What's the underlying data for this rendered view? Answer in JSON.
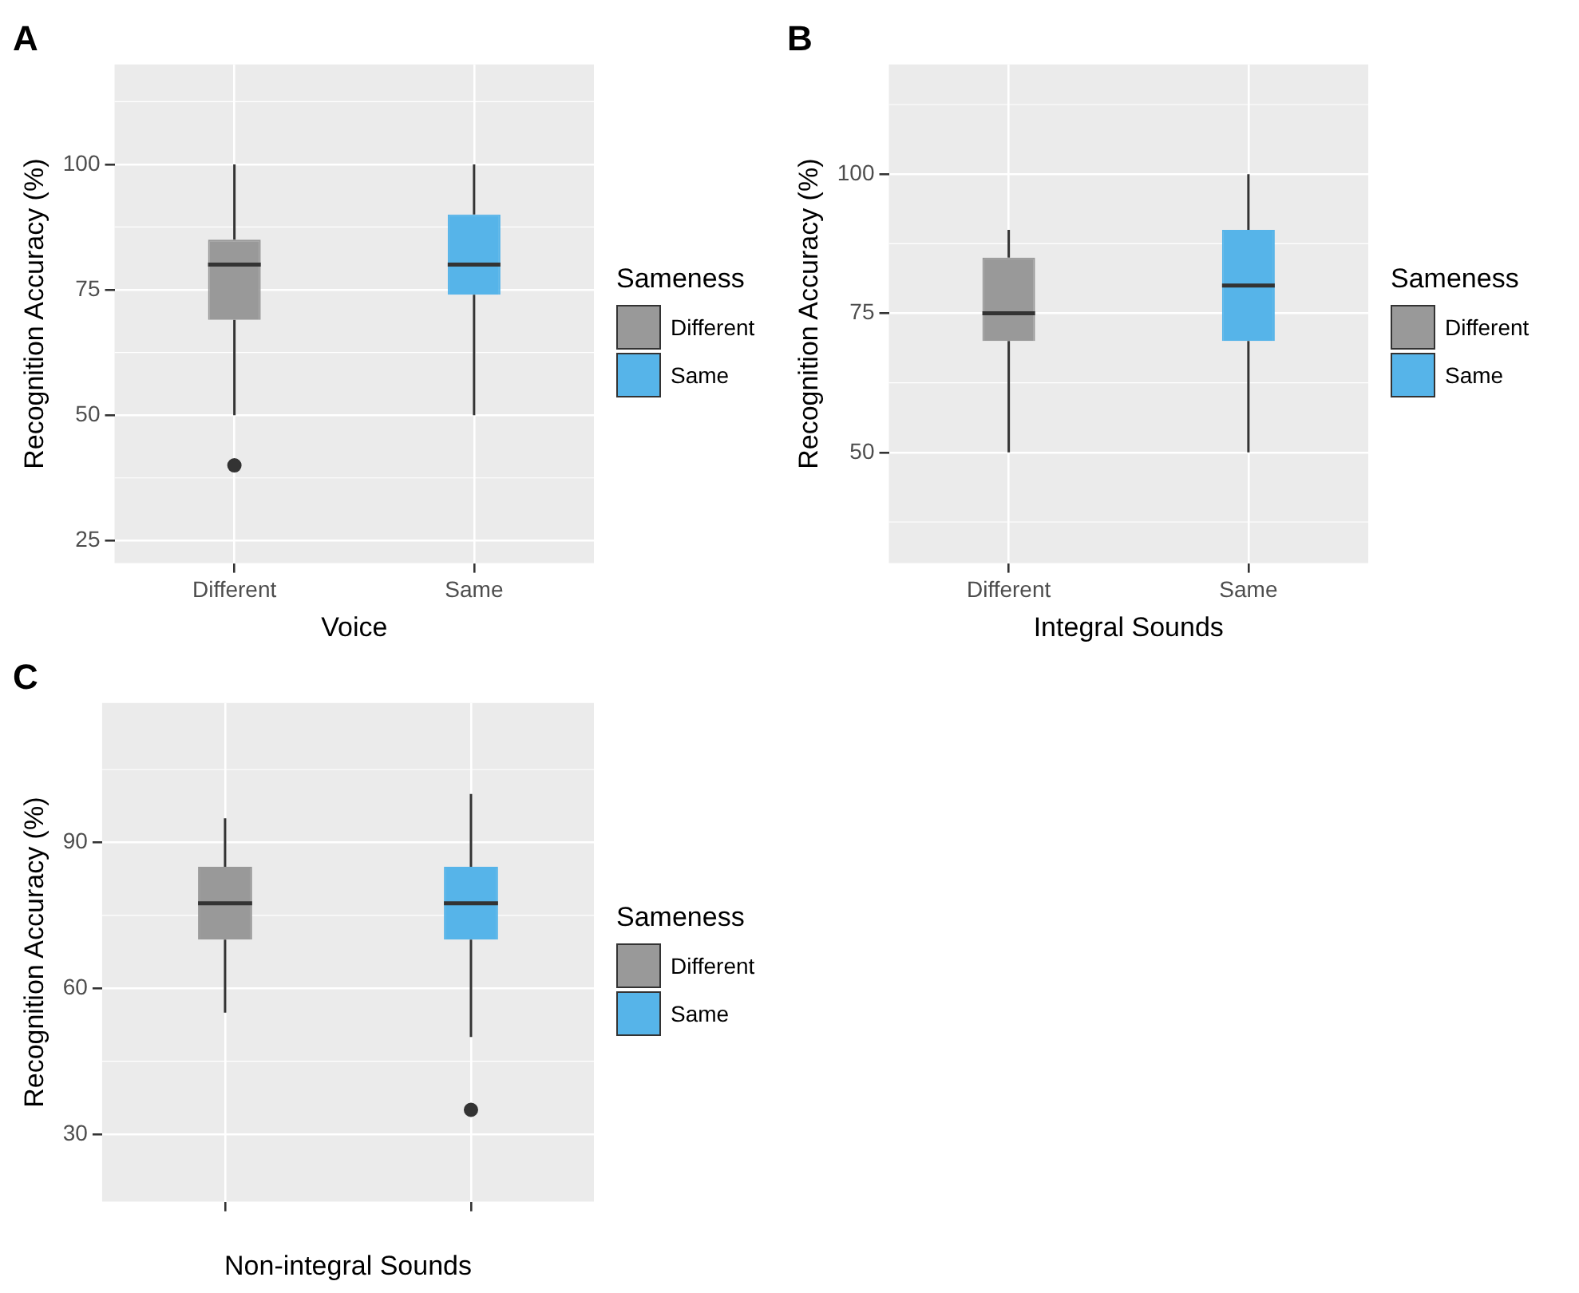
{
  "chart_data": [
    {
      "type": "box",
      "title": "A",
      "xlabel": "Voice",
      "ylabel": "Recognition Accuracy (%)",
      "legend_title": "Sameness",
      "legend": "right",
      "grid": true,
      "categories": [
        "Different",
        "Same"
      ],
      "ylim": [
        20.5,
        119.9
      ],
      "yticks": [
        25,
        50,
        75,
        100
      ],
      "series": [
        {
          "name": "Different",
          "color": "#999999",
          "boxes": [
            {
              "low": 50,
              "q1": 69,
              "median": 80,
              "q3": 85,
              "high": 100,
              "outliers": [
                40
              ]
            },
            null
          ]
        },
        {
          "name": "Same",
          "color": "#56b4e9",
          "boxes": [
            null,
            {
              "low": 50,
              "q1": 74,
              "median": 80,
              "q3": 90,
              "high": 100
            }
          ]
        }
      ]
    },
    {
      "type": "box",
      "title": "B",
      "xlabel": "Integral Sounds",
      "ylabel": "Recognition Accuracy (%)",
      "legend_title": "Sameness",
      "legend": "right",
      "grid": true,
      "categories": [
        "Different",
        "Same"
      ],
      "ylim": [
        30.1,
        119.7
      ],
      "yticks": [
        50,
        75,
        100
      ],
      "series": [
        {
          "name": "Different",
          "color": "#999999",
          "boxes": [
            {
              "low": 50,
              "q1": 70,
              "median": 75,
              "q3": 85,
              "high": 90
            },
            null
          ]
        },
        {
          "name": "Same",
          "color": "#56b4e9",
          "boxes": [
            null,
            {
              "low": 50,
              "q1": 70,
              "median": 80,
              "q3": 90,
              "high": 100
            }
          ]
        }
      ]
    },
    {
      "type": "box",
      "title": "C",
      "xlabel": "Non-integral Sounds",
      "ylabel": "Recognition Accuracy (%)",
      "legend_title": "Sameness",
      "legend": "right",
      "grid": true,
      "categories": [
        null,
        null
      ],
      "ylim": [
        16.1,
        118.7
      ],
      "yticks": [
        30,
        60,
        90
      ],
      "series": [
        {
          "name": "Different",
          "color": "#999999",
          "boxes": [
            {
              "low": 55,
              "q1": 70,
              "median": 77.5,
              "q3": 85,
              "high": 95
            },
            null
          ]
        },
        {
          "name": "Same",
          "color": "#56b4e9",
          "boxes": [
            null,
            {
              "low": 50,
              "q1": 70,
              "median": 77.5,
              "q3": 85,
              "high": 100,
              "outliers": [
                35
              ]
            }
          ]
        }
      ]
    }
  ]
}
